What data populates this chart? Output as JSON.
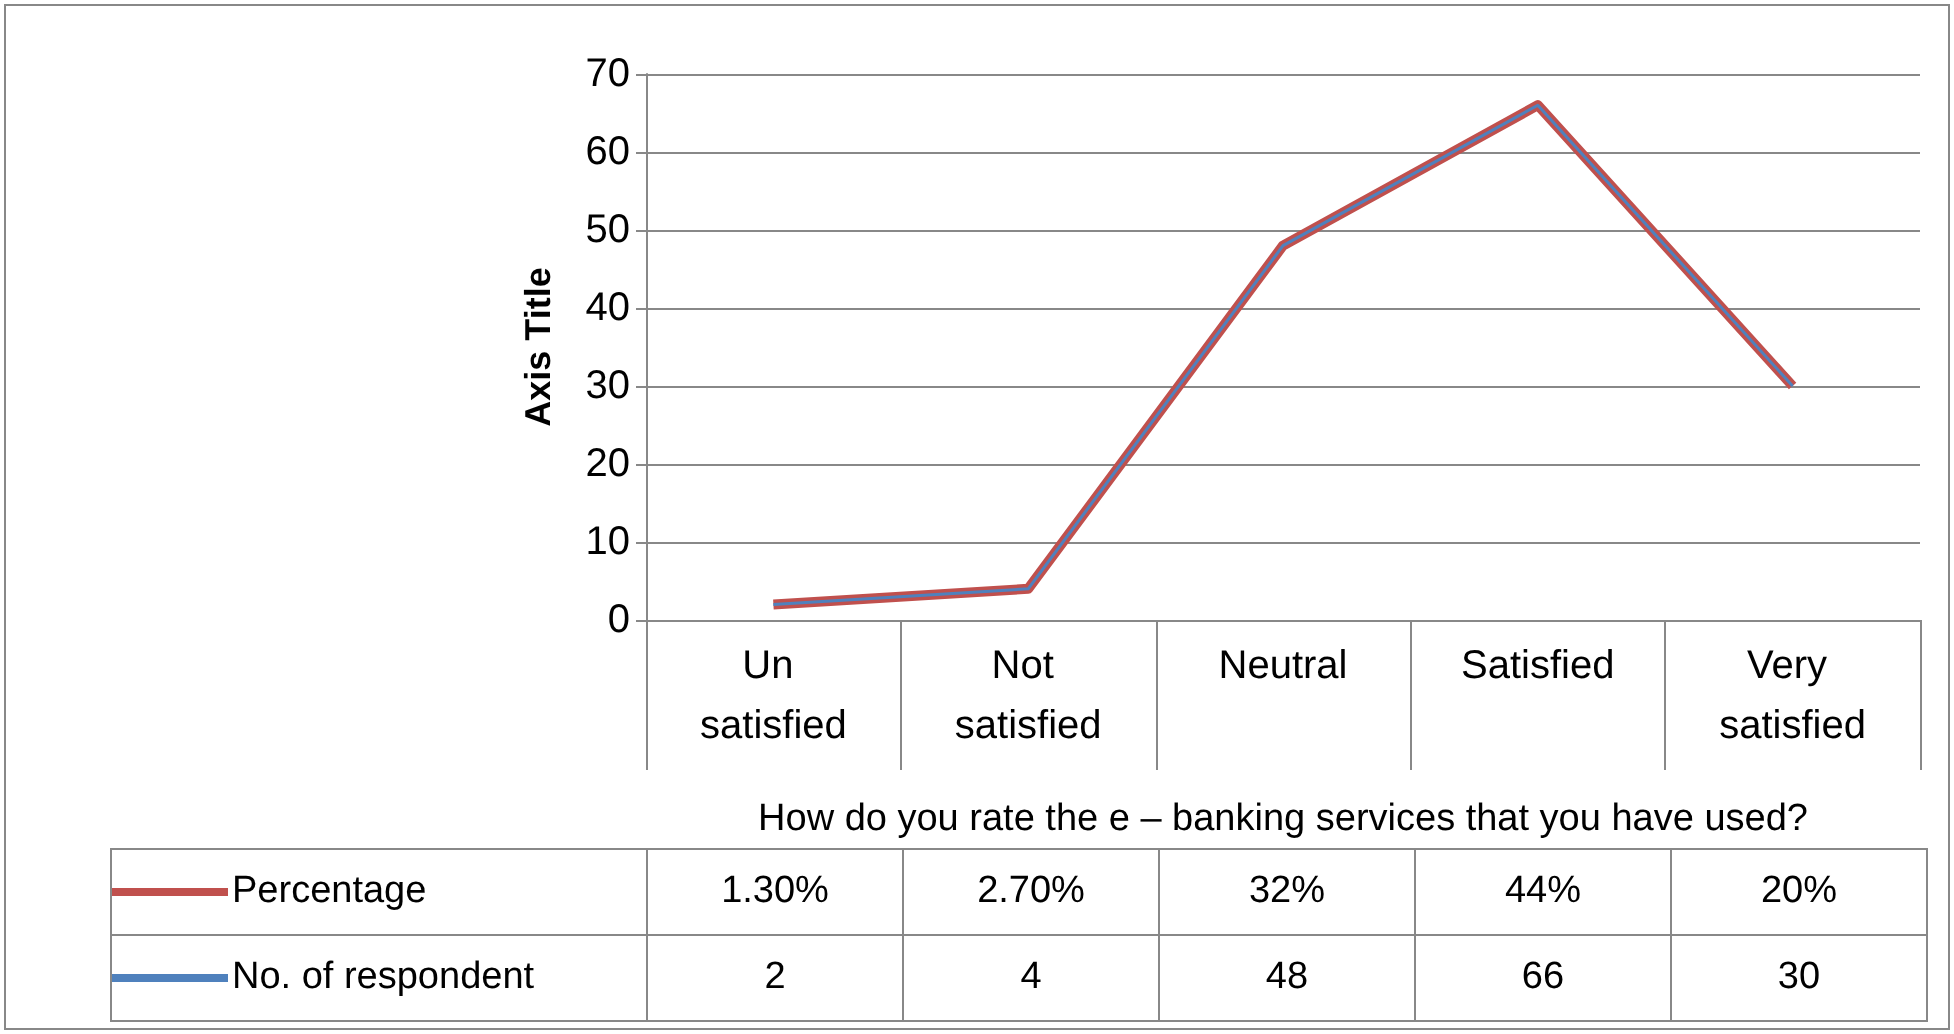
{
  "chart_data": {
    "type": "line",
    "ylabel": "Axis Title",
    "xlabel": "How do you rate the e – banking services that you have used?",
    "categories": [
      "Un satisfied",
      "Not satisfied",
      "Neutral",
      "Satisfied",
      "Very satisfied"
    ],
    "series": [
      {
        "name": "Percentage",
        "color": "#c0504d",
        "values": [
          2,
          4,
          48,
          66,
          30
        ]
      },
      {
        "name": "No. of respondent",
        "color": "#4f81bd",
        "values": [
          2,
          4,
          48,
          66,
          30
        ],
        "value_labels": [
          "2",
          "4",
          "48",
          "66",
          "30"
        ]
      }
    ],
    "annotations": [
      "1.30%",
      "2.70%",
      "32%",
      "44%",
      "20%"
    ],
    "ylim": [
      0,
      70
    ],
    "yticks": [
      0,
      10,
      20,
      30,
      40,
      50,
      60,
      70
    ],
    "grid": "y",
    "legend": "bottom",
    "marker": "none",
    "line_style": "solid"
  }
}
